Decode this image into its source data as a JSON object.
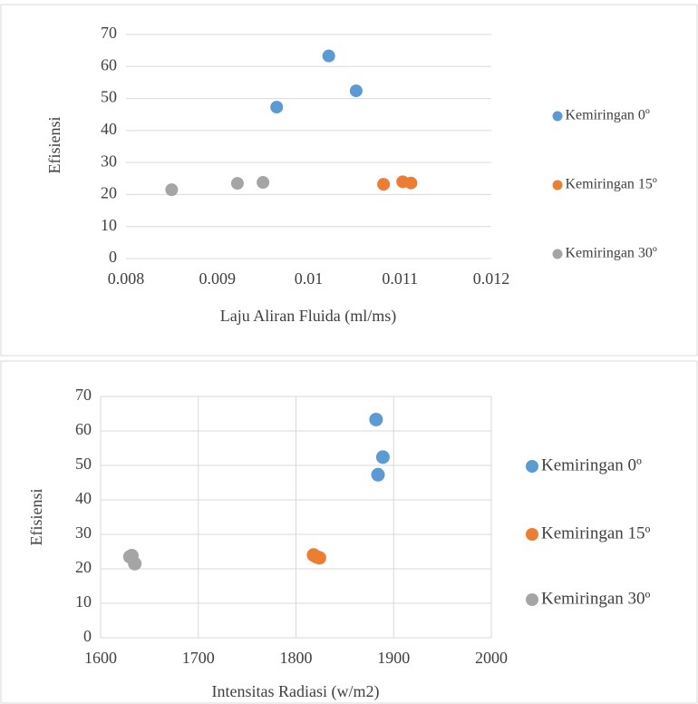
{
  "chart_data": [
    {
      "type": "scatter",
      "xlabel": "Laju Aliran Fluida (ml/ms)",
      "ylabel": "Efisiensi",
      "xlim": [
        0.008,
        0.012
      ],
      "xticks": [
        0.008,
        0.009,
        0.01,
        0.011,
        0.012
      ],
      "ylim": [
        0,
        70
      ],
      "yticks": [
        0,
        10,
        20,
        30,
        40,
        50,
        60,
        70
      ],
      "ygrid": true,
      "xgrid": false,
      "legend": "right",
      "series": [
        {
          "name": "Kemiringan 0º",
          "color": "#5b9bd5",
          "x": [
            0.00965,
            0.01022,
            0.01052
          ],
          "values": [
            47.3,
            63.3,
            52.4
          ]
        },
        {
          "name": "Kemiringan 15º",
          "color": "#ed7d31",
          "x": [
            0.01082,
            0.01103,
            0.01112
          ],
          "values": [
            23.2,
            24.0,
            23.6
          ]
        },
        {
          "name": "Kemiringan 30º",
          "color": "#a5a5a5",
          "x": [
            0.0085,
            0.00922,
            0.0095
          ],
          "values": [
            21.5,
            23.5,
            23.8
          ]
        }
      ]
    },
    {
      "type": "scatter",
      "xlabel": "Intensitas Radiasi (w/m2)",
      "ylabel": "Efisiensi",
      "xlim": [
        1600,
        2000
      ],
      "xticks": [
        1600,
        1700,
        1800,
        1900,
        2000
      ],
      "ylim": [
        0,
        70
      ],
      "yticks": [
        0,
        10,
        20,
        30,
        40,
        50,
        60,
        70
      ],
      "ygrid": true,
      "xgrid": true,
      "legend": "right",
      "series": [
        {
          "name": "Kemiringan 0º",
          "color": "#5b9bd5",
          "x": [
            1882,
            1889,
            1884
          ],
          "values": [
            63.3,
            52.4,
            47.3
          ]
        },
        {
          "name": "Kemiringan 15º",
          "color": "#ed7d31",
          "x": [
            1818,
            1821,
            1824
          ],
          "values": [
            24.0,
            23.5,
            23.2
          ]
        },
        {
          "name": "Kemiringan 30º",
          "color": "#a5a5a5",
          "x": [
            1630,
            1632,
            1635
          ],
          "values": [
            23.5,
            23.8,
            21.5
          ]
        }
      ]
    }
  ]
}
